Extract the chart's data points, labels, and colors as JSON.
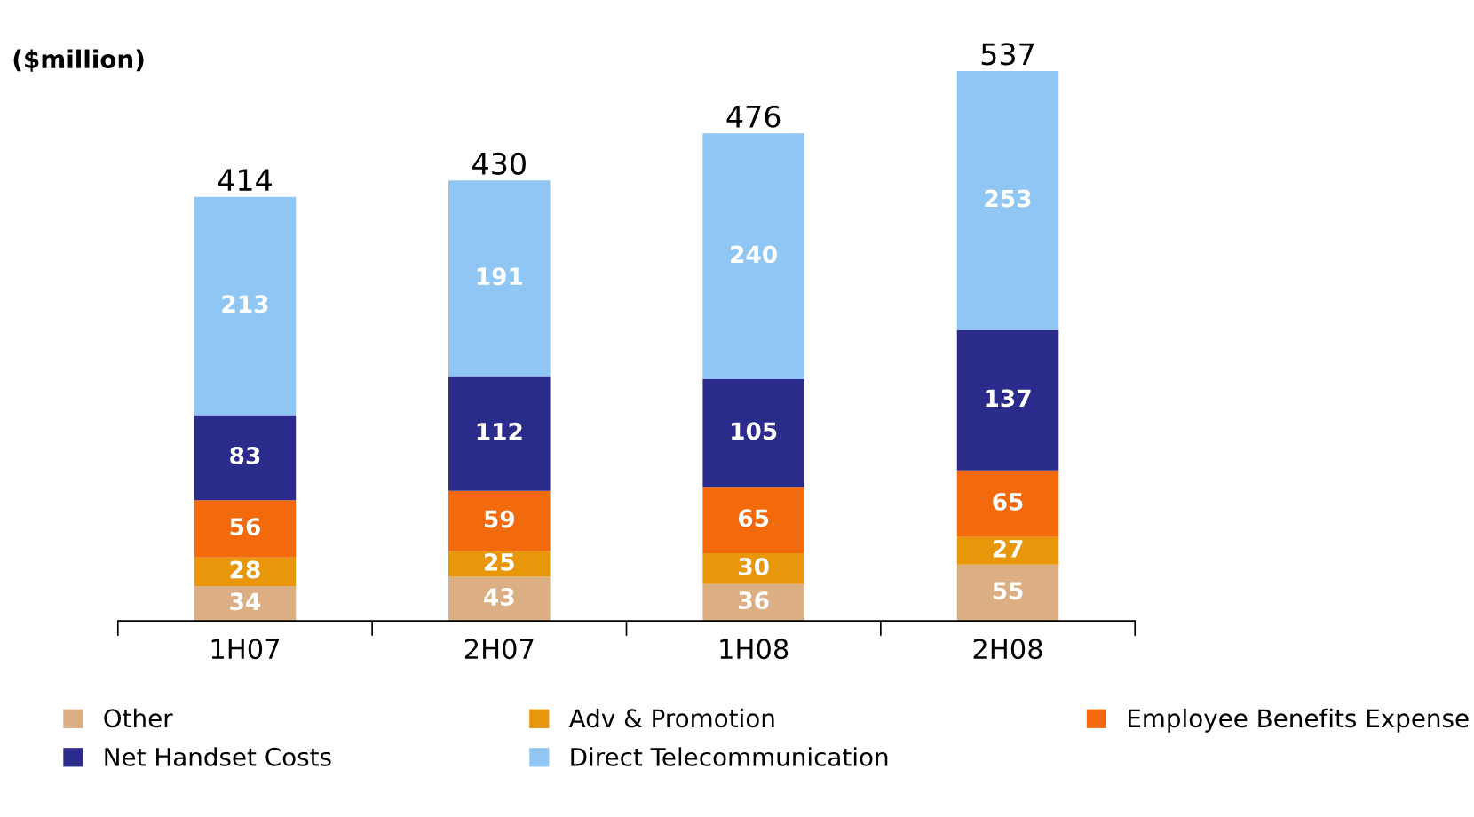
{
  "chart_data": {
    "type": "bar",
    "stacked": true,
    "ylabel": "($million)",
    "categories": [
      "1H07",
      "2H07",
      "1H08",
      "2H08"
    ],
    "series": [
      {
        "name": "Other",
        "color": "#dcae84",
        "values": [
          34,
          43,
          36,
          55
        ]
      },
      {
        "name": "Adv & Promotion",
        "color": "#e8960a",
        "values": [
          28,
          25,
          30,
          27
        ]
      },
      {
        "name": "Employee Benefits Expense",
        "color": "#f26a0c",
        "values": [
          56,
          59,
          65,
          65
        ]
      },
      {
        "name": "Net Handset Costs",
        "color": "#2b2b8c",
        "values": [
          83,
          112,
          105,
          137
        ]
      },
      {
        "name": "Direct Telecommunication",
        "color": "#90c6f4",
        "values": [
          213,
          191,
          240,
          253
        ]
      }
    ],
    "data_labels": true,
    "totals": [
      "414",
      "430",
      "476",
      "537"
    ],
    "legend": "bottom",
    "grid": false
  }
}
